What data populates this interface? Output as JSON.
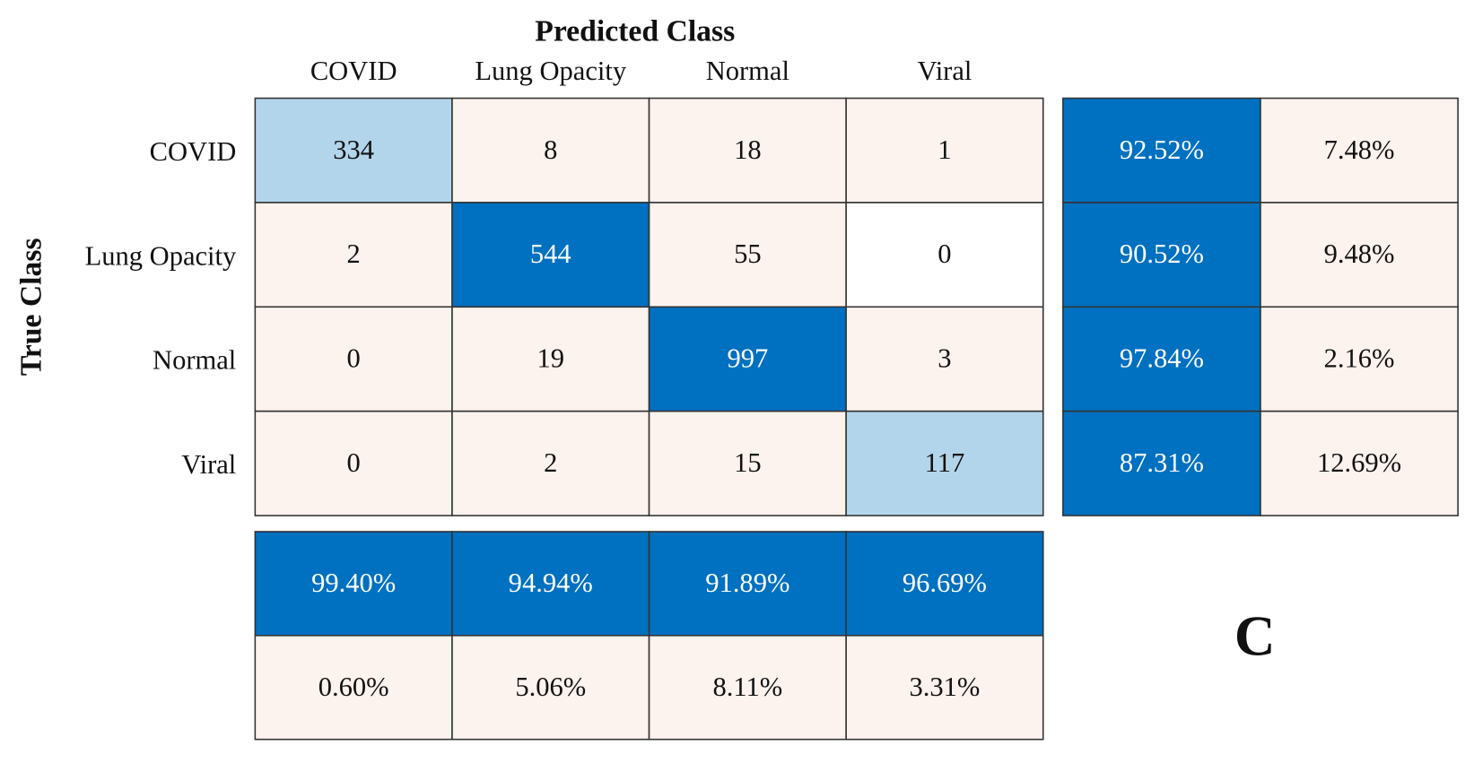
{
  "chart_data": {
    "type": "confusion_matrix",
    "title": "Predicted Class",
    "y_label": "True Class",
    "panel_label": "C",
    "categories": [
      "COVID",
      "Lung Opacity",
      "Normal",
      "Viral"
    ],
    "values": [
      [
        334,
        8,
        18,
        1
      ],
      [
        2,
        544,
        55,
        0
      ],
      [
        0,
        19,
        997,
        3
      ],
      [
        0,
        2,
        15,
        117
      ]
    ],
    "colors": [
      [
        "#b3d5eb",
        "#fcf2ee",
        "#fcf2ee",
        "#fcf2ee"
      ],
      [
        "#fcf2ee",
        "#0070c0",
        "#fcf2ee",
        "#ffffff"
      ],
      [
        "#fcf2ee",
        "#fcf2ee",
        "#0070c0",
        "#fcf2ee"
      ],
      [
        "#fcf2ee",
        "#fcf2ee",
        "#fcf2ee",
        "#b3d5eb"
      ]
    ],
    "row_summary": {
      "values": [
        [
          92.52,
          7.48
        ],
        [
          90.52,
          9.48
        ],
        [
          97.84,
          2.16
        ],
        [
          87.31,
          12.69
        ]
      ],
      "value_labels": [
        [
          "92.52%",
          "7.48%"
        ],
        [
          "90.52%",
          "9.48%"
        ],
        [
          "97.84%",
          "2.16%"
        ],
        [
          "87.31%",
          "12.69%"
        ]
      ],
      "colors": [
        "#0070c0",
        "#fcf2ee"
      ]
    },
    "column_summary": {
      "values": [
        [
          99.4,
          94.94,
          91.89,
          96.69
        ],
        [
          0.6,
          5.06,
          8.11,
          3.31
        ]
      ],
      "value_labels": [
        [
          "99.40%",
          "94.94%",
          "91.89%",
          "96.69%"
        ],
        [
          "0.60%",
          "5.06%",
          "8.11%",
          "3.31%"
        ]
      ],
      "colors": [
        "#0070c0",
        "#fcf2ee"
      ]
    }
  }
}
